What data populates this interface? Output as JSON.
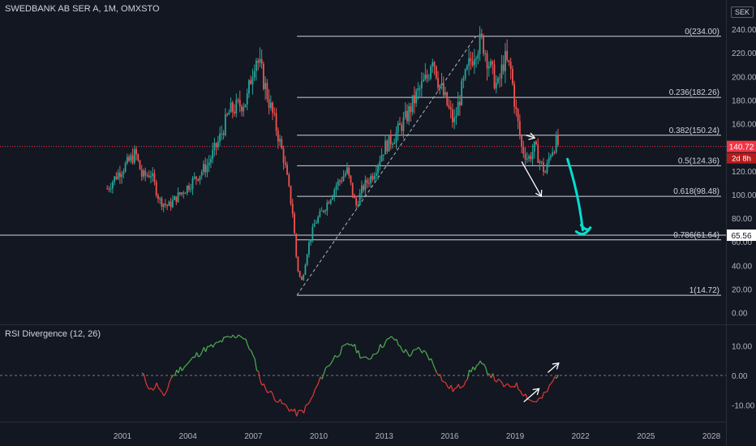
{
  "header": {
    "title": "SWEDBANK AB SER A, 1M, OMXSTO",
    "currency": "SEK"
  },
  "price_axis": {
    "ticks": [
      "240.00",
      "220.00",
      "200.00",
      "180.00",
      "160.00",
      "140.00",
      "120.00",
      "100.00",
      "80.00",
      "60.00",
      "40.00",
      "20.00",
      "0.00"
    ],
    "last_price": "140.72",
    "countdown": "2d 8h",
    "line_price": "65.56"
  },
  "rsi_panel": {
    "title": "RSI Divergence (12, 26)",
    "ticks": [
      "10.00",
      "0.00",
      "-10.00"
    ]
  },
  "time_axis": {
    "labels": [
      "2001",
      "2004",
      "2007",
      "2010",
      "2013",
      "2016",
      "2019",
      "2022",
      "2025",
      "2028"
    ]
  },
  "fib_levels": [
    {
      "ratio": 0,
      "price": 234.0,
      "label": "0(234.00)"
    },
    {
      "ratio": 0.236,
      "price": 182.26,
      "label": "0.236(182.26)"
    },
    {
      "ratio": 0.382,
      "price": 150.24,
      "label": "0.382(150.24)"
    },
    {
      "ratio": 0.5,
      "price": 124.36,
      "label": "0.5(124.36)"
    },
    {
      "ratio": 0.618,
      "price": 98.48,
      "label": "0.618(98.48)"
    },
    {
      "ratio": 0.786,
      "price": 61.64,
      "label": "0.786(61.64)"
    },
    {
      "ratio": 1,
      "price": 14.72,
      "label": "1(14.72)"
    }
  ],
  "colors": {
    "up": "#26a69a",
    "down": "#ef5350",
    "rsi_up": "#4caf50",
    "rsi_down": "#e53935",
    "annotation": "#00e0d0",
    "last_price": "#f23645"
  },
  "chart_data": {
    "type": "candlestick",
    "title": "SWEDBANK AB SER A, 1M, OMXSTO",
    "price_ylim": [
      0,
      240
    ],
    "rsi_ylim": [
      -14,
      16
    ],
    "x_range": [
      1999.3,
      2029.5
    ],
    "price_path": [
      [
        2000.3,
        105
      ],
      [
        2000.8,
        118
      ],
      [
        2001.3,
        128
      ],
      [
        2001.6,
        135
      ],
      [
        2001.9,
        115
      ],
      [
        2002.3,
        118
      ],
      [
        2002.7,
        95
      ],
      [
        2003.1,
        90
      ],
      [
        2003.5,
        98
      ],
      [
        2003.9,
        105
      ],
      [
        2004.4,
        115
      ],
      [
        2004.9,
        125
      ],
      [
        2005.4,
        145
      ],
      [
        2005.9,
        170
      ],
      [
        2006.3,
        175
      ],
      [
        2006.7,
        180
      ],
      [
        2006.9,
        200
      ],
      [
        2007.1,
        218
      ],
      [
        2007.35,
        205
      ],
      [
        2007.7,
        180
      ],
      [
        2008.0,
        160
      ],
      [
        2008.4,
        130
      ],
      [
        2008.8,
        85
      ],
      [
        2009.0,
        40
      ],
      [
        2009.2,
        25
      ],
      [
        2009.5,
        55
      ],
      [
        2009.8,
        75
      ],
      [
        2010.3,
        90
      ],
      [
        2010.8,
        108
      ],
      [
        2011.3,
        120
      ],
      [
        2011.7,
        90
      ],
      [
        2012.0,
        105
      ],
      [
        2012.5,
        118
      ],
      [
        2013.0,
        140
      ],
      [
        2013.5,
        150
      ],
      [
        2014.0,
        165
      ],
      [
        2014.5,
        185
      ],
      [
        2015.0,
        200
      ],
      [
        2015.2,
        220
      ],
      [
        2015.5,
        195
      ],
      [
        2015.9,
        175
      ],
      [
        2016.2,
        160
      ],
      [
        2016.5,
        185
      ],
      [
        2016.9,
        210
      ],
      [
        2017.2,
        225
      ],
      [
        2017.5,
        230
      ],
      [
        2017.9,
        205
      ],
      [
        2018.2,
        190
      ],
      [
        2018.5,
        215
      ],
      [
        2018.8,
        205
      ],
      [
        2019.0,
        175
      ],
      [
        2019.3,
        140
      ],
      [
        2019.6,
        130
      ],
      [
        2019.9,
        140
      ],
      [
        2020.2,
        125
      ],
      [
        2020.4,
        118
      ],
      [
        2020.6,
        135
      ],
      [
        2020.9,
        145
      ],
      [
        2021.0,
        141
      ]
    ],
    "rsi_path": [
      [
        2001.9,
        0.5
      ],
      [
        2002.3,
        -5
      ],
      [
        2002.6,
        -3
      ],
      [
        2002.9,
        -8
      ],
      [
        2003.2,
        -1
      ],
      [
        2003.6,
        2
      ],
      [
        2004.0,
        4
      ],
      [
        2004.4,
        7
      ],
      [
        2004.8,
        9
      ],
      [
        2005.2,
        10
      ],
      [
        2005.6,
        12
      ],
      [
        2006.0,
        13
      ],
      [
        2006.4,
        14
      ],
      [
        2006.8,
        10
      ],
      [
        2007.1,
        4
      ],
      [
        2007.4,
        -3
      ],
      [
        2007.8,
        -6
      ],
      [
        2008.2,
        -9
      ],
      [
        2008.6,
        -11
      ],
      [
        2009.0,
        -13
      ],
      [
        2009.3,
        -12
      ],
      [
        2009.6,
        -9
      ],
      [
        2009.9,
        -4
      ],
      [
        2010.3,
        2
      ],
      [
        2010.7,
        6
      ],
      [
        2011.1,
        9
      ],
      [
        2011.5,
        11
      ],
      [
        2011.9,
        7
      ],
      [
        2012.2,
        5
      ],
      [
        2012.6,
        8
      ],
      [
        2013.0,
        11
      ],
      [
        2013.4,
        13
      ],
      [
        2013.8,
        9
      ],
      [
        2014.2,
        7
      ],
      [
        2014.6,
        9
      ],
      [
        2015.0,
        7
      ],
      [
        2015.4,
        2
      ],
      [
        2015.8,
        -3
      ],
      [
        2016.2,
        -5
      ],
      [
        2016.6,
        -3
      ],
      [
        2017.0,
        2
      ],
      [
        2017.4,
        4
      ],
      [
        2017.8,
        1
      ],
      [
        2018.2,
        -2
      ],
      [
        2018.6,
        -4
      ],
      [
        2019.0,
        -3
      ],
      [
        2019.4,
        -6
      ],
      [
        2019.8,
        -9
      ],
      [
        2020.2,
        -8
      ],
      [
        2020.5,
        -5
      ],
      [
        2020.8,
        -1
      ],
      [
        2021.0,
        1
      ]
    ],
    "annotations": {
      "dashed_trend": [
        [
          2009.0,
          14.72
        ],
        [
          2017.2,
          234.0
        ]
      ],
      "price_arrows": [
        [
          [
            2019.5,
            150.24
          ],
          [
            2019.9,
            148
          ]
        ],
        [
          [
            2019.3,
            128
          ],
          [
            2020.2,
            98.5
          ]
        ]
      ],
      "rsi_arrow": [
        [
          2019.4,
          -9
        ],
        [
          2020.1,
          -4.5
        ]
      ],
      "rsi_arrow_top": [
        [
          2020.5,
          1
        ],
        [
          2021.0,
          4.2
        ]
      ],
      "forecast_arrow": [
        [
          2021.4,
          130
        ],
        [
          2022.1,
          70
        ]
      ]
    }
  }
}
